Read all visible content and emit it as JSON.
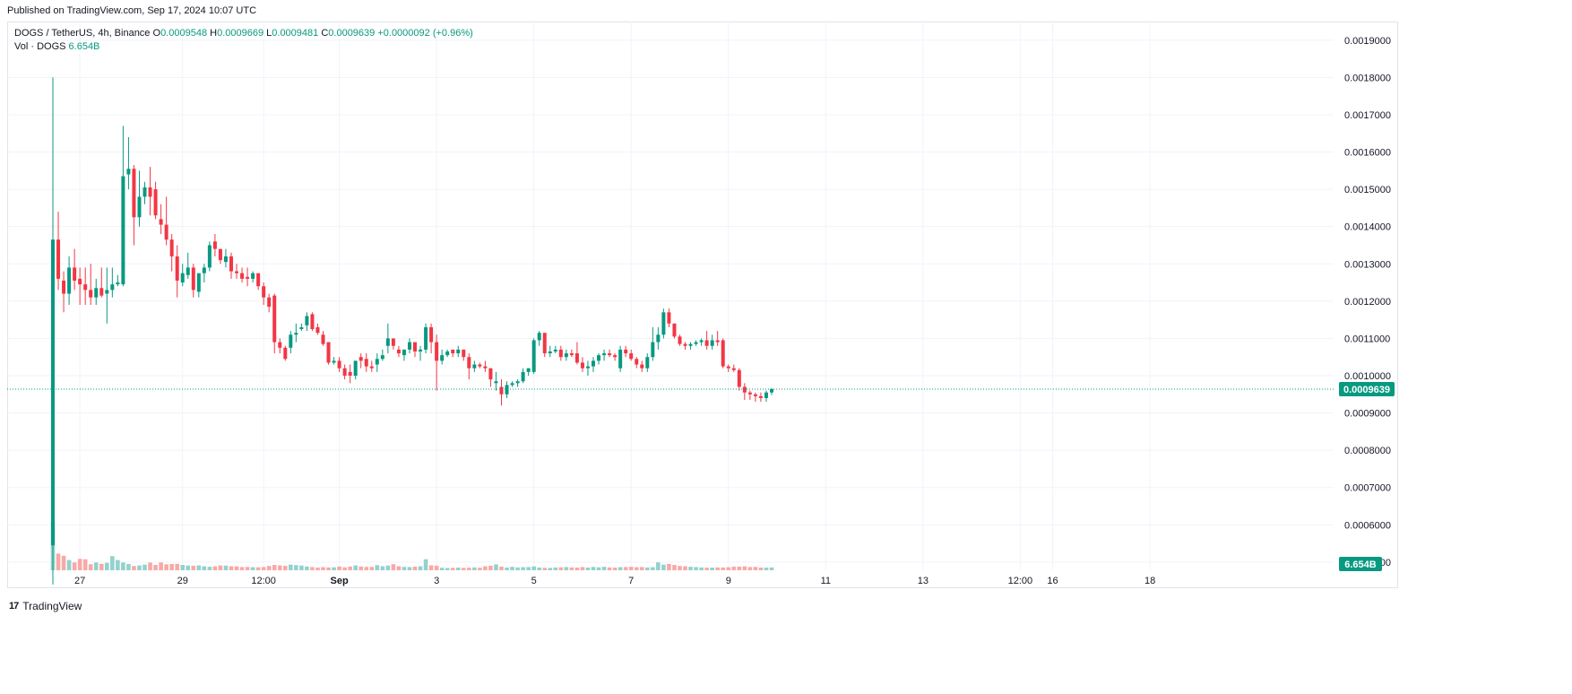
{
  "published": "Published on TradingView.com, Sep 17, 2024 10:07 UTC",
  "legend": {
    "symbol": "DOGS / TetherUS, 4h, Binance",
    "o_label": "O",
    "o_value": "0.0009548",
    "h_label": "H",
    "h_value": "0.0009669",
    "l_label": "L",
    "l_value": "0.0009481",
    "c_label": "C",
    "c_value": "0.0009639",
    "change": "+0.0000092 (+0.96%)",
    "vol_label": "Vol · DOGS",
    "vol_value": "6.654B"
  },
  "colors": {
    "up": "#089981",
    "down": "#f23645",
    "vol_up": "#92d2cc",
    "vol_down": "#f7a9a7",
    "grid": "#f0f3fa",
    "text": "#131722"
  },
  "brand": {
    "name": "TradingView",
    "icon": "tradingview-logo-icon"
  },
  "chart_data": {
    "type": "candlestick",
    "title": "DOGS / TetherUS, 4h, Binance",
    "ylim": [
      0.00043,
      0.00195
    ],
    "y_ticks": [
      "0.0019000",
      "0.0018000",
      "0.0017000",
      "0.0016000",
      "0.0015000",
      "0.0014000",
      "0.0013000",
      "0.0012000",
      "0.0011000",
      "0.0010000",
      "0.0009000",
      "0.0008000",
      "0.0007000",
      "0.0006000",
      "0.0005000"
    ],
    "x_tick_labels": [
      "27",
      "29",
      "12:00",
      "Sep",
      "3",
      "5",
      "7",
      "9",
      "11",
      "13",
      "12:00",
      "16",
      "18"
    ],
    "x_tick_index": [
      5,
      24,
      39,
      53,
      71,
      89,
      107,
      125,
      143,
      161,
      179,
      185,
      203
    ],
    "last_price_label": "0.0009639",
    "last_volume_label": "6.654B",
    "grid": true,
    "candles": [
      [
        0.000545,
        0.0018,
        0.00044,
        0.001365
      ],
      [
        0.001365,
        0.00144,
        0.00123,
        0.00126
      ],
      [
        0.001255,
        0.00128,
        0.00117,
        0.00122
      ],
      [
        0.00122,
        0.00132,
        0.00119,
        0.00129
      ],
      [
        0.00129,
        0.00134,
        0.00123,
        0.001255
      ],
      [
        0.00126,
        0.00129,
        0.00119,
        0.001245
      ],
      [
        0.001245,
        0.00129,
        0.00119,
        0.00123
      ],
      [
        0.00123,
        0.0013,
        0.00119,
        0.00121
      ],
      [
        0.00121,
        0.00126,
        0.00119,
        0.001235
      ],
      [
        0.001235,
        0.00129,
        0.00121,
        0.001215
      ],
      [
        0.00122,
        0.00129,
        0.00114,
        0.00123
      ],
      [
        0.00123,
        0.00129,
        0.00121,
        0.001245
      ],
      [
        0.001245,
        0.00127,
        0.00124,
        0.00125
      ],
      [
        0.001245,
        0.00167,
        0.00124,
        0.001535
      ],
      [
        0.00154,
        0.00164,
        0.0015,
        0.001555
      ],
      [
        0.001555,
        0.001565,
        0.00135,
        0.001425
      ],
      [
        0.001425,
        0.00155,
        0.0014,
        0.00148
      ],
      [
        0.00148,
        0.00152,
        0.00146,
        0.001505
      ],
      [
        0.001505,
        0.00156,
        0.00143,
        0.00148
      ],
      [
        0.0015,
        0.00152,
        0.00142,
        0.00143
      ],
      [
        0.00142,
        0.00146,
        0.00138,
        0.001405
      ],
      [
        0.001405,
        0.00148,
        0.00135,
        0.001365
      ],
      [
        0.001365,
        0.00138,
        0.00128,
        0.00132
      ],
      [
        0.00132,
        0.00135,
        0.00121,
        0.001255
      ],
      [
        0.00125,
        0.0013,
        0.00124,
        0.001275
      ],
      [
        0.00127,
        0.00133,
        0.00126,
        0.00129
      ],
      [
        0.00129,
        0.0013,
        0.00121,
        0.00123
      ],
      [
        0.001225,
        0.00127,
        0.00121,
        0.001275
      ],
      [
        0.001275,
        0.0013,
        0.00125,
        0.00129
      ],
      [
        0.00129,
        0.00136,
        0.00128,
        0.00135
      ],
      [
        0.00136,
        0.00138,
        0.00132,
        0.00134
      ],
      [
        0.00134,
        0.00133,
        0.0013,
        0.00131
      ],
      [
        0.001305,
        0.00134,
        0.00129,
        0.00132
      ],
      [
        0.00132,
        0.00133,
        0.00126,
        0.00128
      ],
      [
        0.00128,
        0.0013,
        0.00126,
        0.001275
      ],
      [
        0.001275,
        0.00129,
        0.00125,
        0.00126
      ],
      [
        0.001265,
        0.00129,
        0.00124,
        0.00126
      ],
      [
        0.00126,
        0.00128,
        0.00125,
        0.001275
      ],
      [
        0.001275,
        0.00127,
        0.00123,
        0.00124
      ],
      [
        0.00124,
        0.00125,
        0.00119,
        0.00121
      ],
      [
        0.00121,
        0.00122,
        0.00117,
        0.001185
      ],
      [
        0.001215,
        0.00122,
        0.00106,
        0.00109
      ],
      [
        0.00109,
        0.0011,
        0.00106,
        0.001075
      ],
      [
        0.001075,
        0.00108,
        0.00104,
        0.001045
      ],
      [
        0.001075,
        0.00112,
        0.00106,
        0.00111
      ],
      [
        0.00111,
        0.00114,
        0.00109,
        0.001115
      ],
      [
        0.001125,
        0.00114,
        0.00112,
        0.00113
      ],
      [
        0.001135,
        0.00117,
        0.00112,
        0.00116
      ],
      [
        0.001165,
        0.00117,
        0.00112,
        0.001125
      ],
      [
        0.00113,
        0.00114,
        0.00111,
        0.001115
      ],
      [
        0.00111,
        0.00112,
        0.00108,
        0.001085
      ],
      [
        0.00109,
        0.00109,
        0.00103,
        0.001035
      ],
      [
        0.001035,
        0.00105,
        0.00103,
        0.00104
      ],
      [
        0.00104,
        0.00105,
        0.00101,
        0.00102
      ],
      [
        0.00102,
        0.00103,
        0.00099,
        0.001
      ],
      [
        0.00101,
        0.00103,
        0.00098,
        0.001
      ],
      [
        0.001,
        0.00104,
        0.00099,
        0.00104
      ],
      [
        0.00105,
        0.00106,
        0.00102,
        0.00104
      ],
      [
        0.001045,
        0.00106,
        0.00101,
        0.001025
      ],
      [
        0.001025,
        0.00104,
        0.00101,
        0.00102
      ],
      [
        0.00103,
        0.00106,
        0.00101,
        0.001045
      ],
      [
        0.001045,
        0.00107,
        0.00104,
        0.001055
      ],
      [
        0.00108,
        0.00114,
        0.00106,
        0.0011
      ],
      [
        0.0011,
        0.00109,
        0.00107,
        0.00108
      ],
      [
        0.00107,
        0.00108,
        0.00105,
        0.00106
      ],
      [
        0.001055,
        0.00107,
        0.00104,
        0.00107
      ],
      [
        0.00107,
        0.0011,
        0.00106,
        0.00109
      ],
      [
        0.00109,
        0.00108,
        0.00105,
        0.001065
      ],
      [
        0.001065,
        0.00108,
        0.00104,
        0.00107
      ],
      [
        0.00107,
        0.00114,
        0.00106,
        0.00113
      ],
      [
        0.00113,
        0.00114,
        0.00106,
        0.00109
      ],
      [
        0.00109,
        0.00111,
        0.00096,
        0.00104
      ],
      [
        0.00104,
        0.00107,
        0.00103,
        0.001055
      ],
      [
        0.001055,
        0.00107,
        0.00105,
        0.001065
      ],
      [
        0.00107,
        0.00107,
        0.00105,
        0.00106
      ],
      [
        0.00106,
        0.00108,
        0.00105,
        0.00107
      ],
      [
        0.00107,
        0.00107,
        0.00104,
        0.00105
      ],
      [
        0.00105,
        0.00106,
        0.00099,
        0.00102
      ],
      [
        0.00102,
        0.00104,
        0.00101,
        0.00103
      ],
      [
        0.00103,
        0.001035,
        0.00102,
        0.001025
      ],
      [
        0.001025,
        0.00104,
        0.00101,
        0.00102
      ],
      [
        0.00102,
        0.00102,
        0.00097,
        0.00099
      ],
      [
        0.00098,
        0.00101,
        0.00096,
        0.000985
      ],
      [
        0.00097,
        0.00099,
        0.00092,
        0.00095
      ],
      [
        0.00095,
        0.000985,
        0.00094,
        0.000975
      ],
      [
        0.000975,
        0.000985,
        0.00097,
        0.00098
      ],
      [
        0.00098,
        0.00099,
        0.00097,
        0.000985
      ],
      [
        0.000985,
        0.00102,
        0.00098,
        0.00101
      ],
      [
        0.00101,
        0.00102,
        0.001,
        0.00102
      ],
      [
        0.00101,
        0.0011,
        0.001005,
        0.001095
      ],
      [
        0.001095,
        0.00112,
        0.00108,
        0.001115
      ],
      [
        0.001115,
        0.001105,
        0.00105,
        0.00106
      ],
      [
        0.00106,
        0.00108,
        0.00105,
        0.001065
      ],
      [
        0.001065,
        0.00108,
        0.00106,
        0.00107
      ],
      [
        0.00107,
        0.00108,
        0.00104,
        0.00105
      ],
      [
        0.00105,
        0.00107,
        0.00104,
        0.00106
      ],
      [
        0.00106,
        0.00107,
        0.00105,
        0.001055
      ],
      [
        0.00106,
        0.00109,
        0.00103,
        0.001035
      ],
      [
        0.001035,
        0.00105,
        0.00101,
        0.00102
      ],
      [
        0.00102,
        0.00104,
        0.001,
        0.001025
      ],
      [
        0.001025,
        0.00105,
        0.00101,
        0.00104
      ],
      [
        0.00104,
        0.00106,
        0.00103,
        0.001055
      ],
      [
        0.001055,
        0.00107,
        0.00104,
        0.00106
      ],
      [
        0.00106,
        0.00107,
        0.00105,
        0.001055
      ],
      [
        0.001055,
        0.00106,
        0.00104,
        0.00105
      ],
      [
        0.00102,
        0.00108,
        0.00101,
        0.00107
      ],
      [
        0.00107,
        0.00108,
        0.00105,
        0.00106
      ],
      [
        0.00106,
        0.00107,
        0.00104,
        0.001045
      ],
      [
        0.001045,
        0.00105,
        0.00102,
        0.00103
      ],
      [
        0.00103,
        0.00104,
        0.00101,
        0.00102
      ],
      [
        0.00102,
        0.00106,
        0.00101,
        0.00105
      ],
      [
        0.00105,
        0.00113,
        0.00104,
        0.00109
      ],
      [
        0.00109,
        0.00113,
        0.00107,
        0.00111
      ],
      [
        0.00111,
        0.00118,
        0.0011,
        0.00117
      ],
      [
        0.00117,
        0.00118,
        0.00113,
        0.00114
      ],
      [
        0.00114,
        0.00113,
        0.0011,
        0.001105
      ],
      [
        0.001105,
        0.00111,
        0.00108,
        0.001085
      ],
      [
        0.001085,
        0.00109,
        0.00107,
        0.00108
      ],
      [
        0.00108,
        0.00109,
        0.00107,
        0.001085
      ],
      [
        0.001085,
        0.001095,
        0.00108,
        0.00109
      ],
      [
        0.00109,
        0.0011,
        0.00108,
        0.001095
      ],
      [
        0.001095,
        0.00112,
        0.00107,
        0.00108
      ],
      [
        0.00108,
        0.00111,
        0.00107,
        0.001095
      ],
      [
        0.001095,
        0.00112,
        0.00108,
        0.00109
      ],
      [
        0.001095,
        0.0011,
        0.00102,
        0.001025
      ],
      [
        0.001025,
        0.00103,
        0.00101,
        0.00102
      ],
      [
        0.00102,
        0.00103,
        0.00101,
        0.001015
      ],
      [
        0.001015,
        0.00102,
        0.00096,
        0.00097
      ],
      [
        0.00097,
        0.00098,
        0.000935,
        0.000955
      ],
      [
        0.000955,
        0.00096,
        0.000935,
        0.00095
      ],
      [
        0.00095,
        0.000955,
        0.00093,
        0.000945
      ],
      [
        0.000945,
        0.000955,
        0.00093,
        0.00094
      ],
      [
        0.00094,
        0.00096,
        0.00093,
        0.000955
      ],
      [
        0.000955,
        0.000967,
        0.000948,
        0.000964
      ]
    ],
    "volumes": [
      0.36,
      0.124,
      0.108,
      0.076,
      0.058,
      0.085,
      0.082,
      0.045,
      0.058,
      0.048,
      0.055,
      0.105,
      0.076,
      0.058,
      0.047,
      0.032,
      0.036,
      0.042,
      0.057,
      0.04,
      0.058,
      0.044,
      0.047,
      0.048,
      0.04,
      0.035,
      0.034,
      0.036,
      0.03,
      0.026,
      0.029,
      0.036,
      0.035,
      0.03,
      0.029,
      0.024,
      0.025,
      0.023,
      0.022,
      0.024,
      0.032,
      0.04,
      0.036,
      0.033,
      0.042,
      0.038,
      0.035,
      0.028,
      0.024,
      0.02,
      0.023,
      0.021,
      0.022,
      0.028,
      0.022,
      0.028,
      0.036,
      0.028,
      0.025,
      0.025,
      0.038,
      0.03,
      0.035,
      0.045,
      0.03,
      0.025,
      0.024,
      0.027,
      0.03,
      0.082,
      0.037,
      0.034,
      0.019,
      0.017,
      0.018,
      0.02,
      0.018,
      0.019,
      0.021,
      0.019,
      0.03,
      0.034,
      0.044,
      0.027,
      0.02,
      0.026,
      0.021,
      0.023,
      0.024,
      0.029,
      0.02,
      0.018,
      0.018,
      0.021,
      0.022,
      0.024,
      0.021,
      0.02,
      0.024,
      0.02,
      0.025,
      0.022,
      0.026,
      0.021,
      0.02,
      0.023,
      0.024,
      0.026,
      0.023,
      0.024,
      0.021,
      0.023,
      0.059,
      0.042,
      0.047,
      0.04,
      0.032,
      0.03,
      0.026,
      0.024,
      0.021,
      0.019,
      0.02,
      0.021,
      0.021,
      0.023,
      0.027,
      0.027,
      0.029,
      0.024,
      0.025,
      0.02,
      0.02,
      0.021,
      0.02
    ],
    "volume_note": "last volume 6.654B"
  }
}
